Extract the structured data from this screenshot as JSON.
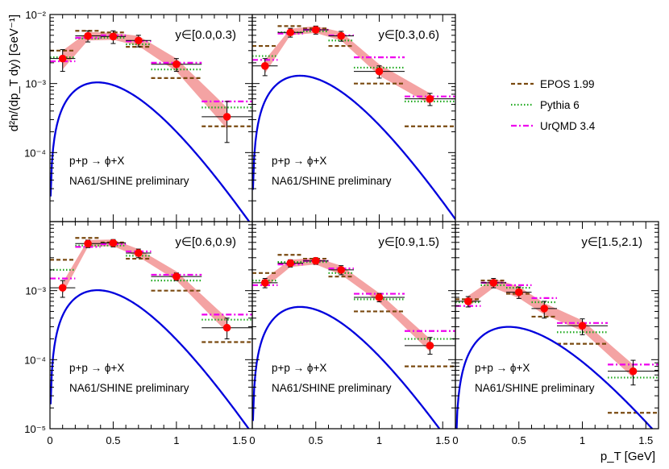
{
  "figure": {
    "y_axis_label": "d²n/(dp_T dy)  [GeV⁻¹]",
    "x_axis_label": "p_T [GeV]",
    "x_ticks": [
      {
        "value": 0,
        "label": "0"
      },
      {
        "value": 0.5,
        "label": "0.5"
      },
      {
        "value": 1,
        "label": "1"
      },
      {
        "value": 1.5,
        "label": "1.5"
      }
    ],
    "legend": [
      {
        "name": "EPOS 1.99",
        "color": "#7a4a10",
        "style": "dashed"
      },
      {
        "name": "Pythia 6",
        "color": "#1faa1f",
        "style": "dotted"
      },
      {
        "name": "UrQMD 3.4",
        "color": "#ee00ee",
        "style": "dashdot"
      }
    ],
    "colors": {
      "data": "#ff0000",
      "band": "#f4a3a3",
      "fit": "#0000dd",
      "error": "#000000"
    }
  },
  "chart_data": [
    {
      "type": "scatter",
      "title": "y∈[0.0,0.3)",
      "reaction": "p+p → ϕ+X",
      "label": "NA61/SHINE preliminary",
      "ylim": [
        1e-05,
        0.01
      ],
      "xlim": [
        0,
        1.6
      ],
      "y_ticks": [
        {
          "value": 0.01,
          "label": "10⁻²"
        },
        {
          "value": 0.001,
          "label": "10⁻³"
        },
        {
          "value": 0.0001,
          "label": "10⁻⁴"
        }
      ],
      "data": [
        {
          "x": 0.1,
          "xerr": 0.1,
          "y": 0.0023,
          "yerr_lo": 0.0008,
          "yerr_hi": 0.0008
        },
        {
          "x": 0.3,
          "xerr": 0.1,
          "y": 0.0049,
          "yerr_lo": 0.0009,
          "yerr_hi": 0.0009
        },
        {
          "x": 0.5,
          "xerr": 0.1,
          "y": 0.0048,
          "yerr_lo": 0.001,
          "yerr_hi": 0.001
        },
        {
          "x": 0.7,
          "xerr": 0.1,
          "y": 0.0042,
          "yerr_lo": 0.0008,
          "yerr_hi": 0.0008
        },
        {
          "x": 1.0,
          "xerr": 0.2,
          "y": 0.0019,
          "yerr_lo": 0.0004,
          "yerr_hi": 0.0004
        },
        {
          "x": 1.4,
          "xerr": 0.2,
          "y": 0.00033,
          "yerr_lo": 0.00019,
          "yerr_hi": 0.00022
        }
      ],
      "band": [
        [
          0.1,
          0.0016,
          0.003
        ],
        [
          0.3,
          0.0042,
          0.0056
        ],
        [
          0.5,
          0.0043,
          0.0054
        ],
        [
          0.7,
          0.0035,
          0.0049
        ],
        [
          1.0,
          0.0015,
          0.0023
        ],
        [
          1.4,
          0.00022,
          0.00045
        ]
      ],
      "fit": {
        "A": 0.004633,
        "T": 0.13,
        "m": 1.0195
      },
      "models": {
        "EPOS 1.99": [
          [
            0,
            0.2,
            0.003
          ],
          [
            0.2,
            0.4,
            0.0058
          ],
          [
            0.4,
            0.6,
            0.0055
          ],
          [
            0.6,
            0.8,
            0.0034
          ],
          [
            0.8,
            1.2,
            0.0012
          ],
          [
            1.2,
            1.6,
            0.00024
          ]
        ],
        "Pythia 6": [
          [
            0,
            0.2,
            0.0024
          ],
          [
            0.2,
            0.4,
            0.0045
          ],
          [
            0.4,
            0.6,
            0.0046
          ],
          [
            0.6,
            0.8,
            0.0037
          ],
          [
            0.8,
            1.2,
            0.0016
          ],
          [
            1.2,
            1.6,
            0.00045
          ]
        ],
        "UrQMD 3.4": [
          [
            0,
            0.2,
            0.0021
          ],
          [
            0.2,
            0.4,
            0.0046
          ],
          [
            0.4,
            0.6,
            0.005
          ],
          [
            0.6,
            0.8,
            0.0041
          ],
          [
            0.8,
            1.2,
            0.002
          ],
          [
            1.2,
            1.6,
            0.00055
          ]
        ]
      }
    },
    {
      "type": "scatter",
      "title": "y∈[0.3,0.6)",
      "reaction": "p+p → ϕ+X",
      "label": "NA61/SHINE preliminary",
      "ylim": [
        1e-05,
        0.01
      ],
      "xlim": [
        0,
        1.6
      ],
      "y_ticks": [],
      "data": [
        {
          "x": 0.1,
          "xerr": 0.1,
          "y": 0.0018,
          "yerr_lo": 0.0005,
          "yerr_hi": 0.0005
        },
        {
          "x": 0.3,
          "xerr": 0.1,
          "y": 0.0055,
          "yerr_lo": 0.0008,
          "yerr_hi": 0.0008
        },
        {
          "x": 0.5,
          "xerr": 0.1,
          "y": 0.006,
          "yerr_lo": 0.0008,
          "yerr_hi": 0.0008
        },
        {
          "x": 0.7,
          "xerr": 0.1,
          "y": 0.0049,
          "yerr_lo": 0.0008,
          "yerr_hi": 0.0008
        },
        {
          "x": 1.0,
          "xerr": 0.2,
          "y": 0.0015,
          "yerr_lo": 0.0003,
          "yerr_hi": 0.0003
        },
        {
          "x": 1.4,
          "xerr": 0.2,
          "y": 0.0006,
          "yerr_lo": 0.00012,
          "yerr_hi": 0.00012
        }
      ],
      "band": [
        [
          0.1,
          0.0014,
          0.0022
        ],
        [
          0.3,
          0.005,
          0.0062
        ],
        [
          0.5,
          0.0054,
          0.0068
        ],
        [
          0.7,
          0.0042,
          0.0056
        ],
        [
          1.0,
          0.0013,
          0.0019
        ],
        [
          1.4,
          0.0005,
          0.00072
        ]
      ],
      "fit": {
        "A": 0.005786,
        "T": 0.13,
        "m": 1.0195
      },
      "models": {
        "EPOS 1.99": [
          [
            0,
            0.2,
            0.0035
          ],
          [
            0.2,
            0.4,
            0.0068
          ],
          [
            0.4,
            0.6,
            0.0063
          ],
          [
            0.6,
            0.8,
            0.0035
          ],
          [
            0.8,
            1.2,
            0.001
          ],
          [
            1.2,
            1.6,
            0.00024
          ]
        ],
        "Pythia 6": [
          [
            0,
            0.2,
            0.0025
          ],
          [
            0.2,
            0.4,
            0.0055
          ],
          [
            0.4,
            0.6,
            0.0057
          ],
          [
            0.6,
            0.8,
            0.0042
          ],
          [
            0.8,
            1.2,
            0.0017
          ],
          [
            1.2,
            1.6,
            0.00055
          ]
        ],
        "UrQMD 3.4": [
          [
            0,
            0.2,
            0.0022
          ],
          [
            0.2,
            0.4,
            0.0053
          ],
          [
            0.4,
            0.6,
            0.006
          ],
          [
            0.6,
            0.8,
            0.005
          ],
          [
            0.8,
            1.2,
            0.0024
          ],
          [
            1.2,
            1.6,
            0.00065
          ]
        ]
      }
    },
    {
      "type": "scatter",
      "title": "y∈[0.6,0.9)",
      "reaction": "p+p → ϕ+X",
      "label": "NA61/SHINE preliminary",
      "ylim": [
        1e-05,
        0.01
      ],
      "xlim": [
        0,
        1.6
      ],
      "y_ticks": [
        {
          "value": 0.001,
          "label": "10⁻³"
        },
        {
          "value": 0.0001,
          "label": "10⁻⁴"
        },
        {
          "value": 1e-05,
          "label": "10⁻⁵"
        }
      ],
      "data": [
        {
          "x": 0.1,
          "xerr": 0.1,
          "y": 0.0011,
          "yerr_lo": 0.0003,
          "yerr_hi": 0.0003
        },
        {
          "x": 0.3,
          "xerr": 0.1,
          "y": 0.0048,
          "yerr_lo": 0.0006,
          "yerr_hi": 0.0006
        },
        {
          "x": 0.5,
          "xerr": 0.1,
          "y": 0.0049,
          "yerr_lo": 0.0006,
          "yerr_hi": 0.0006
        },
        {
          "x": 0.7,
          "xerr": 0.1,
          "y": 0.0035,
          "yerr_lo": 0.0005,
          "yerr_hi": 0.0005
        },
        {
          "x": 1.0,
          "xerr": 0.2,
          "y": 0.0016,
          "yerr_lo": 0.0002,
          "yerr_hi": 0.0002
        },
        {
          "x": 1.4,
          "xerr": 0.2,
          "y": 0.00029,
          "yerr_lo": 9e-05,
          "yerr_hi": 0.00011
        }
      ],
      "band": [
        [
          0.1,
          0.0009,
          0.0013
        ],
        [
          0.3,
          0.0043,
          0.0054
        ],
        [
          0.5,
          0.0044,
          0.0055
        ],
        [
          0.7,
          0.0031,
          0.004
        ],
        [
          1.0,
          0.0014,
          0.0019
        ],
        [
          1.4,
          0.00025,
          0.0004
        ]
      ],
      "fit": {
        "A": 0.004524,
        "T": 0.13,
        "m": 1.0195
      },
      "models": {
        "EPOS 1.99": [
          [
            0,
            0.2,
            0.0028
          ],
          [
            0.2,
            0.4,
            0.0058
          ],
          [
            0.4,
            0.6,
            0.005
          ],
          [
            0.6,
            0.8,
            0.0029
          ],
          [
            0.8,
            1.2,
            0.001
          ],
          [
            1.2,
            1.6,
            0.00018
          ]
        ],
        "Pythia 6": [
          [
            0,
            0.2,
            0.002
          ],
          [
            0.2,
            0.4,
            0.0045
          ],
          [
            0.4,
            0.6,
            0.0045
          ],
          [
            0.6,
            0.8,
            0.0032
          ],
          [
            0.8,
            1.2,
            0.0014
          ],
          [
            1.2,
            1.6,
            0.00038
          ]
        ],
        "UrQMD 3.4": [
          [
            0,
            0.2,
            0.0015
          ],
          [
            0.2,
            0.4,
            0.0043
          ],
          [
            0.4,
            0.6,
            0.0047
          ],
          [
            0.6,
            0.8,
            0.0037
          ],
          [
            0.8,
            1.2,
            0.0017
          ],
          [
            1.2,
            1.6,
            0.00045
          ]
        ]
      }
    },
    {
      "type": "scatter",
      "title": "y∈[0.9,1.5)",
      "reaction": "p+p → ϕ+X",
      "label": "NA61/SHINE preliminary",
      "ylim": [
        1e-05,
        0.01
      ],
      "xlim": [
        0,
        1.6
      ],
      "y_ticks": [],
      "data": [
        {
          "x": 0.1,
          "xerr": 0.1,
          "y": 0.0013,
          "yerr_lo": 0.0002,
          "yerr_hi": 0.0002
        },
        {
          "x": 0.3,
          "xerr": 0.1,
          "y": 0.0025,
          "yerr_lo": 0.0003,
          "yerr_hi": 0.0003
        },
        {
          "x": 0.5,
          "xerr": 0.1,
          "y": 0.0027,
          "yerr_lo": 0.0003,
          "yerr_hi": 0.0003
        },
        {
          "x": 0.7,
          "xerr": 0.1,
          "y": 0.002,
          "yerr_lo": 0.0003,
          "yerr_hi": 0.0003
        },
        {
          "x": 1.0,
          "xerr": 0.2,
          "y": 0.0008,
          "yerr_lo": 0.00011,
          "yerr_hi": 0.00011
        },
        {
          "x": 1.4,
          "xerr": 0.2,
          "y": 0.00016,
          "yerr_lo": 4e-05,
          "yerr_hi": 5e-05
        }
      ],
      "band": [
        [
          0.1,
          0.0011,
          0.0015
        ],
        [
          0.3,
          0.0022,
          0.0028
        ],
        [
          0.5,
          0.0024,
          0.003
        ],
        [
          0.7,
          0.0017,
          0.0023
        ],
        [
          1.0,
          0.00068,
          0.00092
        ],
        [
          1.4,
          0.00013,
          0.0002
        ]
      ],
      "fit": {
        "A": 0.002591,
        "T": 0.13,
        "m": 1.0195
      },
      "models": {
        "EPOS 1.99": [
          [
            0,
            0.2,
            0.0018
          ],
          [
            0.2,
            0.4,
            0.0033
          ],
          [
            0.4,
            0.6,
            0.0029
          ],
          [
            0.6,
            0.8,
            0.0016
          ],
          [
            0.8,
            1.2,
            0.0005
          ],
          [
            1.2,
            1.6,
            8e-05
          ]
        ],
        "Pythia 6": [
          [
            0,
            0.2,
            0.0014
          ],
          [
            0.2,
            0.4,
            0.0026
          ],
          [
            0.4,
            0.6,
            0.0026
          ],
          [
            0.6,
            0.8,
            0.0018
          ],
          [
            0.8,
            1.2,
            0.00075
          ],
          [
            1.2,
            1.6,
            0.0002
          ]
        ],
        "UrQMD 3.4": [
          [
            0,
            0.2,
            0.0012
          ],
          [
            0.2,
            0.4,
            0.0024
          ],
          [
            0.4,
            0.6,
            0.0027
          ],
          [
            0.6,
            0.8,
            0.0021
          ],
          [
            0.8,
            1.2,
            0.0009
          ],
          [
            1.2,
            1.6,
            0.00026
          ]
        ]
      }
    },
    {
      "type": "scatter",
      "title": "y∈[1.5,2.1)",
      "reaction": "p+p → ϕ+X",
      "label": "NA61/SHINE preliminary",
      "ylim": [
        1e-05,
        0.01
      ],
      "xlim": [
        0,
        1.6
      ],
      "y_ticks": [],
      "data": [
        {
          "x": 0.1,
          "xerr": 0.1,
          "y": 0.0007,
          "yerr_lo": 0.00012,
          "yerr_hi": 0.00012
        },
        {
          "x": 0.3,
          "xerr": 0.1,
          "y": 0.0013,
          "yerr_lo": 0.0002,
          "yerr_hi": 0.0002
        },
        {
          "x": 0.5,
          "xerr": 0.1,
          "y": 0.00095,
          "yerr_lo": 0.00018,
          "yerr_hi": 0.00018
        },
        {
          "x": 0.7,
          "xerr": 0.1,
          "y": 0.00055,
          "yerr_lo": 0.00015,
          "yerr_hi": 0.00015
        },
        {
          "x": 1.0,
          "xerr": 0.2,
          "y": 0.00031,
          "yerr_lo": 8e-05,
          "yerr_hi": 8e-05
        },
        {
          "x": 1.4,
          "xerr": 0.2,
          "y": 6.8e-05,
          "yerr_lo": 2.5e-05,
          "yerr_hi": 3e-05
        }
      ],
      "band": [
        [
          0.1,
          0.00058,
          0.00084
        ],
        [
          0.3,
          0.0011,
          0.0015
        ],
        [
          0.5,
          0.00078,
          0.00115
        ],
        [
          0.7,
          0.00045,
          0.00066
        ],
        [
          1.0,
          0.00026,
          0.00037
        ],
        [
          1.4,
          5.5e-05,
          8.5e-05
        ]
      ],
      "fit": {
        "A": 0.001196,
        "T": 0.16,
        "m": 1.0195
      },
      "models": {
        "EPOS 1.99": [
          [
            0,
            0.2,
            0.00075
          ],
          [
            0.2,
            0.4,
            0.0014
          ],
          [
            0.4,
            0.6,
            0.0009
          ],
          [
            0.6,
            0.8,
            0.00042
          ],
          [
            0.8,
            1.2,
            0.00017
          ],
          [
            1.2,
            1.6,
            1.7e-05
          ]
        ],
        "Pythia 6": [
          [
            0,
            0.2,
            0.00068
          ],
          [
            0.2,
            0.4,
            0.0012
          ],
          [
            0.4,
            0.6,
            0.0011
          ],
          [
            0.6,
            0.8,
            0.00068
          ],
          [
            0.8,
            1.2,
            0.00025
          ],
          [
            1.2,
            1.6,
            5.5e-05
          ]
        ],
        "UrQMD 3.4": [
          [
            0,
            0.2,
            0.0006
          ],
          [
            0.2,
            0.4,
            0.0013
          ],
          [
            0.4,
            0.6,
            0.0012
          ],
          [
            0.6,
            0.8,
            0.00078
          ],
          [
            0.8,
            1.2,
            0.00034
          ],
          [
            1.2,
            1.6,
            8.5e-05
          ]
        ]
      }
    }
  ]
}
